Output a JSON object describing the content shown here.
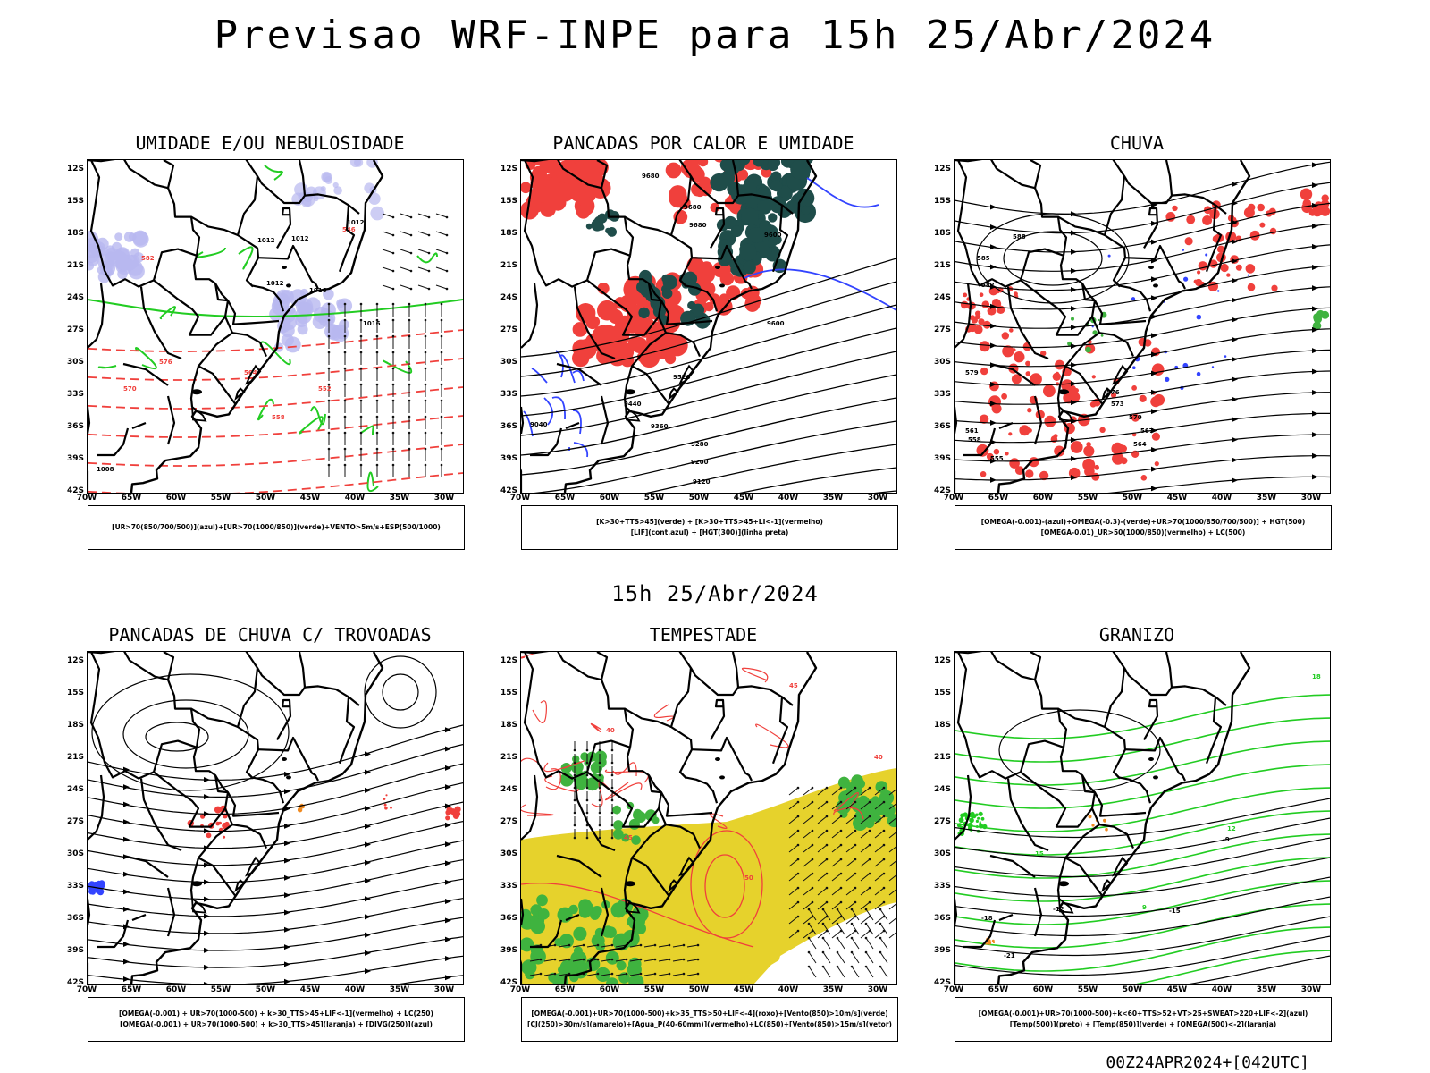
{
  "title": "Previsao WRF-INPE  para 15h 25/Abr/2024",
  "subtitle": "15h 25/Abr/2024",
  "footer": "00Z24APR2024+[042UTC]",
  "lat_labels": [
    "12S",
    "15S",
    "18S",
    "21S",
    "24S",
    "27S",
    "30S",
    "33S",
    "36S",
    "39S",
    "42S"
  ],
  "lon_labels": [
    "70W",
    "65W",
    "60W",
    "55W",
    "50W",
    "45W",
    "40W",
    "35W",
    "30W"
  ],
  "panels": [
    {
      "title": "UMIDADE E/OU NEBULOSIDADE",
      "legend": [
        "[UR>70(850/700/500)](azul)+[UR>70(1000/850)](verde)+VENTO>5m/s+ESP(500/1000)"
      ],
      "contour_labels": [
        "1012",
        "1012",
        "1012",
        "1012",
        "1016",
        "1016",
        "1008",
        "576",
        "570",
        "564",
        "558",
        "552",
        "546",
        "582"
      ]
    },
    {
      "title": "PANCADAS POR CALOR E UMIDADE",
      "legend": [
        "[K>30+TTS>45](verde) + [K>30+TTS>45+LI<-1](vermelho)",
        "[LIF](cont.azul) + [HGT(300)](linha preta)"
      ],
      "contour_labels": [
        "9680",
        "9680",
        "9680",
        "9600",
        "9600",
        "9520",
        "9440",
        "9360",
        "9280",
        "9200",
        "9120",
        "9040"
      ]
    },
    {
      "title": "CHUVA",
      "legend": [
        "[OMEGA(-0.001)-(azul)+OMEGA(-0.3)-(verde)+UR>70(1000/850/700/500)] + HGT(500)",
        "[OMEGA-0.01)_UR>50(1000/850)(vermelho) + LC(500)"
      ],
      "contour_labels": [
        "588",
        "585",
        "582",
        "579",
        "576",
        "573",
        "570",
        "567",
        "564",
        "561",
        "558",
        "555"
      ]
    },
    {
      "title": "PANCADAS DE CHUVA C/ TROVOADAS",
      "legend": [
        "[OMEGA(-0.001) + UR>70(1000-500) + k>30_TTS>45+LIF<-1](vermelho) + LC(250)",
        "[OMEGA(-0.001) + UR>70(1000-500) + k>30_TTS>45](laranja) + [DIVG(250)](azul)"
      ],
      "contour_labels": []
    },
    {
      "title": "TEMPESTADE",
      "legend": [
        "[OMEGA(-0.001)+UR>70(1000-500)+k>35_TTS>50+LIF<-4](roxo)+[Vento(850)>10m/s](verde)",
        "[CJ(250)>30m/s](amarelo)+[Agua_P(40-60mm)](vermelho)+LC(850)+[Vento(850)>15m/s](vetor)"
      ],
      "contour_labels": [
        "40",
        "45",
        "50",
        "45",
        "40"
      ]
    },
    {
      "title": "GRANIZO",
      "legend": [
        "[OMEGA(-0.001)+UR>70(1000-500)+k<60+TTS>52+VT>25+SWEAT>220+LIF<-2](azul)",
        "[Temp(500)](preto) + [Temp(850)](verde) + [OMEGA(500)<-2](laranja)"
      ],
      "contour_labels": [
        "-9",
        "-12",
        "-15",
        "-18",
        "-21",
        "12",
        "15",
        "18",
        "9"
      ]
    }
  ],
  "colors": {
    "land_fill": "#ffffff",
    "border": "#000000",
    "red_area": "#f0403c",
    "green_line": "#22cc22",
    "blue_line": "#3344ff",
    "lavender": "#b8b8f0",
    "dark_teal": "#1f4d4a",
    "yellow": "#e6d22c",
    "green_fill": "#3fb33f",
    "stream": "#000000"
  }
}
